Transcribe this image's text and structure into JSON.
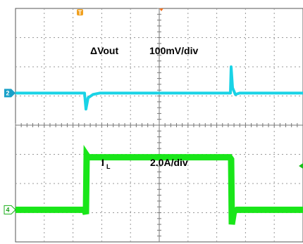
{
  "chart_data": {
    "type": "line",
    "title": "",
    "grid": true,
    "xdivisions": 10,
    "ydivisions": 8,
    "trigger_marker": "T",
    "channels": [
      {
        "id": "2",
        "name": "ΔVout",
        "scale_label": "100mV/div",
        "color": "#19d3e6",
        "baseline_div": 2.9,
        "events": [
          {
            "t": 2.45,
            "shape": "undershoot",
            "depth": 0.55
          },
          {
            "t": 7.5,
            "shape": "overshoot",
            "depth": 0.9
          }
        ]
      },
      {
        "id": "4",
        "name_main": "I",
        "name_sub": "L",
        "scale_label": "2.0A/div",
        "color": "#19e619",
        "low_div": 6.9,
        "high_div": 5.1,
        "step_up_t": 2.45,
        "step_down_t": 7.5
      }
    ]
  }
}
